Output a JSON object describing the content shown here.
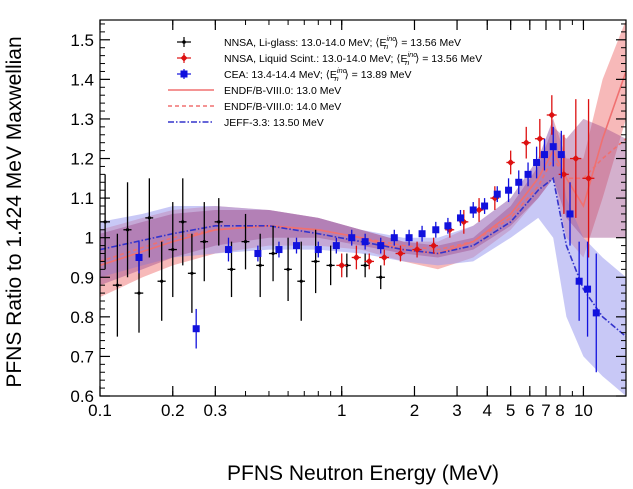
{
  "chart_data": {
    "type": "scatter",
    "title": "",
    "xlabel": "PFNS Neutron Energy (MeV)",
    "ylabel": "PFNS Ratio to 1.424 MeV Maxwellian",
    "xscale": "log",
    "xlim": [
      0.1,
      15
    ],
    "ylim": [
      0.6,
      1.55
    ],
    "grid": false,
    "legend_position": "top-right",
    "x_ticks": [
      0.1,
      0.2,
      0.3,
      1,
      2,
      3,
      4,
      5,
      6,
      7,
      8,
      10
    ],
    "x_tick_labels": [
      "0.1",
      "0.2",
      "0.3",
      "1",
      "2",
      "3",
      "4",
      "5",
      "6",
      "7",
      "8",
      "10"
    ],
    "y_ticks": [
      0.6,
      0.7,
      0.8,
      0.9,
      1.0,
      1.1,
      1.2,
      1.3,
      1.4,
      1.5
    ],
    "y_tick_labels": [
      "0.6",
      "0.7",
      "0.8",
      "0.9",
      "1",
      "1.1",
      "1.2",
      "1.3",
      "1.4",
      "1.5"
    ],
    "legend": [
      {
        "label": "NNSA, Li-glass: 13.0-14.0 MeV; ⟨E",
        "sub": "n",
        "sup": "inc",
        "tail": "⟩ = 13.56 MeV",
        "color": "#000000",
        "style": "marker-small"
      },
      {
        "label": "NNSA, Liquid Scint.: 13.0-14.0 MeV; ⟨E",
        "sub": "n",
        "sup": "inc",
        "tail": "⟩ = 13.56 MeV",
        "color": "#dd1111",
        "style": "marker-diamond"
      },
      {
        "label": "CEA: 13.4-14.4 MeV; ⟨E",
        "sub": "n",
        "sup": "inc",
        "tail": "⟩ = 13.89 MeV",
        "color": "#1111dd",
        "style": "marker-square"
      },
      {
        "label": "ENDF/B-VIII.0: 13.0 MeV",
        "color": "#f07070",
        "style": "solid"
      },
      {
        "label": "ENDF/B-VIII.0: 14.0 MeV",
        "color": "#f07070",
        "style": "dashed"
      },
      {
        "label": "JEFF-3.3: 13.50 MeV",
        "color": "#3333cc",
        "style": "dashdot"
      }
    ],
    "bands": [
      {
        "name": "ENDF/B-VIII.0: 13.0 MeV",
        "color": "#f08080",
        "opacity": 0.55,
        "x": [
          0.1,
          0.15,
          0.2,
          0.3,
          0.5,
          0.8,
          1.2,
          1.8,
          2.5,
          3.5,
          5,
          6.5,
          7.5,
          8.5,
          10,
          12,
          15
        ],
        "upper": [
          1.02,
          1.05,
          1.07,
          1.08,
          1.07,
          1.05,
          1.02,
          0.99,
          0.99,
          1.03,
          1.1,
          1.2,
          1.3,
          1.2,
          1.2,
          1.4,
          1.55
        ],
        "lower": [
          0.85,
          0.9,
          0.93,
          0.96,
          0.98,
          0.98,
          0.97,
          0.94,
          0.92,
          0.95,
          1.02,
          1.1,
          1.15,
          1.0,
          0.95,
          1.1,
          1.3
        ]
      },
      {
        "name": "JEFF-3.3: 13.50 MeV",
        "color": "#9b9bee",
        "opacity": 0.55,
        "x": [
          0.1,
          0.15,
          0.2,
          0.3,
          0.5,
          0.8,
          1.2,
          1.8,
          2.5,
          3.5,
          5,
          6.5,
          7.5,
          8.5,
          10,
          12,
          15
        ],
        "upper": [
          1.04,
          1.06,
          1.08,
          1.08,
          1.07,
          1.05,
          1.02,
          1.0,
          1.0,
          1.03,
          1.1,
          1.2,
          1.3,
          1.1,
          1.0,
          0.95,
          0.9
        ],
        "lower": [
          0.9,
          0.93,
          0.95,
          0.96,
          0.97,
          0.97,
          0.96,
          0.94,
          0.93,
          0.94,
          1.0,
          1.05,
          1.0,
          0.8,
          0.7,
          0.65,
          0.6
        ]
      },
      {
        "name": "ENDF/B-VIII.0: 14.0 MeV",
        "color": "#a05090",
        "opacity": 0.45,
        "x": [
          0.1,
          0.15,
          0.2,
          0.3,
          0.5,
          0.8,
          1.2,
          1.8,
          2.5,
          3.5,
          5,
          6.5,
          7.5,
          8.5,
          10,
          12,
          15
        ],
        "upper": [
          1.01,
          1.04,
          1.06,
          1.07,
          1.07,
          1.05,
          1.02,
          0.99,
          0.98,
          1.0,
          1.08,
          1.18,
          1.28,
          1.25,
          1.3,
          1.28,
          1.25
        ],
        "lower": [
          0.88,
          0.92,
          0.95,
          0.98,
          1.0,
          1.0,
          0.98,
          0.96,
          0.95,
          0.97,
          1.03,
          1.1,
          1.15,
          1.05,
          1.0,
          1.0,
          1.0
        ]
      }
    ],
    "curves": [
      {
        "name": "ENDF/B-VIII.0: 13.0 MeV",
        "color": "#f07070",
        "dash": "",
        "x": [
          0.1,
          0.2,
          0.3,
          0.5,
          0.8,
          1.2,
          1.8,
          2.5,
          3.5,
          5,
          6.5,
          7.5,
          8.5,
          10,
          12,
          15
        ],
        "y": [
          0.93,
          0.99,
          1.02,
          1.03,
          1.02,
          1.0,
          0.97,
          0.96,
          0.99,
          1.06,
          1.15,
          1.22,
          1.15,
          1.08,
          1.25,
          1.42
        ]
      },
      {
        "name": "ENDF/B-VIII.0: 14.0 MeV",
        "color": "#f07070",
        "dash": "4,3",
        "x": [
          0.1,
          0.2,
          0.3,
          0.5,
          0.8,
          1.2,
          1.8,
          2.5,
          3.5,
          5,
          6.5,
          7.5,
          8.5,
          10,
          12,
          15
        ],
        "y": [
          0.94,
          1.0,
          1.02,
          1.03,
          1.02,
          1.0,
          0.98,
          0.97,
          0.99,
          1.05,
          1.13,
          1.2,
          1.15,
          1.15,
          1.2,
          1.25
        ]
      },
      {
        "name": "JEFF-3.3: 13.50 MeV",
        "color": "#3333cc",
        "dash": "6,2,1.5,2",
        "x": [
          0.1,
          0.2,
          0.3,
          0.5,
          0.8,
          1.2,
          1.8,
          2.5,
          3.5,
          5,
          6.5,
          7.5,
          8.5,
          10,
          12,
          15
        ],
        "y": [
          0.97,
          1.01,
          1.03,
          1.03,
          1.01,
          0.99,
          0.97,
          0.96,
          0.98,
          1.04,
          1.12,
          1.15,
          0.98,
          0.87,
          0.8,
          0.75
        ]
      }
    ],
    "series": [
      {
        "name": "NNSA, Li-glass: 13.0-14.0 MeV",
        "color": "#000000",
        "marker": "small",
        "points": [
          {
            "x": 0.105,
            "y": 1.04,
            "yerr": 0.12,
            "xerr": 0.005
          },
          {
            "x": 0.118,
            "y": 0.88,
            "yerr": 0.13,
            "xerr": 0.005
          },
          {
            "x": 0.13,
            "y": 1.02,
            "yerr": 0.12,
            "xerr": 0.005
          },
          {
            "x": 0.145,
            "y": 0.86,
            "yerr": 0.1,
            "xerr": 0.006
          },
          {
            "x": 0.16,
            "y": 1.05,
            "yerr": 0.1,
            "xerr": 0.006
          },
          {
            "x": 0.18,
            "y": 0.89,
            "yerr": 0.1,
            "xerr": 0.007
          },
          {
            "x": 0.2,
            "y": 0.97,
            "yerr": 0.12,
            "xerr": 0.008
          },
          {
            "x": 0.22,
            "y": 1.04,
            "yerr": 0.11,
            "xerr": 0.008
          },
          {
            "x": 0.24,
            "y": 0.91,
            "yerr": 0.1,
            "xerr": 0.009
          },
          {
            "x": 0.27,
            "y": 0.99,
            "yerr": 0.1,
            "xerr": 0.01
          },
          {
            "x": 0.31,
            "y": 1.04,
            "yerr": 0.06,
            "xerr": 0.012
          },
          {
            "x": 0.35,
            "y": 0.92,
            "yerr": 0.07,
            "xerr": 0.013
          },
          {
            "x": 0.4,
            "y": 0.99,
            "yerr": 0.07,
            "xerr": 0.015
          },
          {
            "x": 0.46,
            "y": 0.93,
            "yerr": 0.08,
            "xerr": 0.017
          },
          {
            "x": 0.52,
            "y": 0.96,
            "yerr": 0.07,
            "xerr": 0.02
          },
          {
            "x": 0.6,
            "y": 0.92,
            "yerr": 0.08,
            "xerr": 0.022
          },
          {
            "x": 0.68,
            "y": 0.89,
            "yerr": 0.1,
            "xerr": 0.025
          },
          {
            "x": 0.78,
            "y": 0.94,
            "yerr": 0.08,
            "xerr": 0.03
          },
          {
            "x": 0.9,
            "y": 0.93,
            "yerr": 0.05,
            "xerr": 0.035
          },
          {
            "x": 1.05,
            "y": 0.93,
            "yerr": 0.03,
            "xerr": 0.04
          },
          {
            "x": 1.25,
            "y": 0.93,
            "yerr": 0.03,
            "xerr": 0.05
          },
          {
            "x": 1.45,
            "y": 0.9,
            "yerr": 0.03,
            "xerr": 0.06
          }
        ]
      },
      {
        "name": "NNSA, Liquid Scint.: 13.0-14.0 MeV",
        "color": "#dd1111",
        "marker": "diamond",
        "points": [
          {
            "x": 1.0,
            "y": 0.93,
            "yerr": 0.03,
            "xerr": 0.05
          },
          {
            "x": 1.15,
            "y": 0.95,
            "yerr": 0.03,
            "xerr": 0.05
          },
          {
            "x": 1.3,
            "y": 0.94,
            "yerr": 0.02,
            "xerr": 0.06
          },
          {
            "x": 1.5,
            "y": 0.95,
            "yerr": 0.02,
            "xerr": 0.07
          },
          {
            "x": 1.75,
            "y": 0.96,
            "yerr": 0.02,
            "xerr": 0.08
          },
          {
            "x": 2.05,
            "y": 0.97,
            "yerr": 0.02,
            "xerr": 0.09
          },
          {
            "x": 2.4,
            "y": 0.98,
            "yerr": 0.02,
            "xerr": 0.1
          },
          {
            "x": 2.8,
            "y": 1.02,
            "yerr": 0.02,
            "xerr": 0.12
          },
          {
            "x": 3.2,
            "y": 1.04,
            "yerr": 0.03,
            "xerr": 0.14
          },
          {
            "x": 3.7,
            "y": 1.07,
            "yerr": 0.03,
            "xerr": 0.16
          },
          {
            "x": 4.3,
            "y": 1.1,
            "yerr": 0.03,
            "xerr": 0.18
          },
          {
            "x": 5.0,
            "y": 1.19,
            "yerr": 0.03,
            "xerr": 0.2
          },
          {
            "x": 5.8,
            "y": 1.24,
            "yerr": 0.04,
            "xerr": 0.25
          },
          {
            "x": 6.6,
            "y": 1.25,
            "yerr": 0.05,
            "xerr": 0.3
          },
          {
            "x": 7.4,
            "y": 1.31,
            "yerr": 0.05,
            "xerr": 0.35
          },
          {
            "x": 8.3,
            "y": 1.16,
            "yerr": 0.1,
            "xerr": 0.4
          },
          {
            "x": 9.3,
            "y": 1.2,
            "yerr": 0.15,
            "xerr": 0.5
          },
          {
            "x": 10.5,
            "y": 1.15,
            "yerr": 0.2,
            "xerr": 0.6
          }
        ]
      },
      {
        "name": "CEA: 13.4-14.4 MeV",
        "color": "#1111dd",
        "marker": "square",
        "points": [
          {
            "x": 0.145,
            "y": 0.95,
            "yerr": 0.04
          },
          {
            "x": 0.25,
            "y": 0.77,
            "yerr": 0.05
          },
          {
            "x": 0.34,
            "y": 0.97,
            "yerr": 0.03
          },
          {
            "x": 0.45,
            "y": 0.96,
            "yerr": 0.02
          },
          {
            "x": 0.55,
            "y": 0.97,
            "yerr": 0.02
          },
          {
            "x": 0.65,
            "y": 0.98,
            "yerr": 0.02
          },
          {
            "x": 0.8,
            "y": 0.97,
            "yerr": 0.02
          },
          {
            "x": 0.95,
            "y": 0.98,
            "yerr": 0.02
          },
          {
            "x": 1.1,
            "y": 1.0,
            "yerr": 0.02
          },
          {
            "x": 1.25,
            "y": 0.99,
            "yerr": 0.02
          },
          {
            "x": 1.45,
            "y": 0.98,
            "yerr": 0.02
          },
          {
            "x": 1.65,
            "y": 1.0,
            "yerr": 0.02
          },
          {
            "x": 1.9,
            "y": 1.0,
            "yerr": 0.02
          },
          {
            "x": 2.15,
            "y": 1.01,
            "yerr": 0.02
          },
          {
            "x": 2.45,
            "y": 1.02,
            "yerr": 0.02
          },
          {
            "x": 2.75,
            "y": 1.03,
            "yerr": 0.02
          },
          {
            "x": 3.1,
            "y": 1.05,
            "yerr": 0.02
          },
          {
            "x": 3.5,
            "y": 1.07,
            "yerr": 0.02
          },
          {
            "x": 3.9,
            "y": 1.08,
            "yerr": 0.02
          },
          {
            "x": 4.4,
            "y": 1.11,
            "yerr": 0.02
          },
          {
            "x": 4.9,
            "y": 1.12,
            "yerr": 0.03
          },
          {
            "x": 5.4,
            "y": 1.14,
            "yerr": 0.03
          },
          {
            "x": 5.9,
            "y": 1.16,
            "yerr": 0.03
          },
          {
            "x": 6.4,
            "y": 1.19,
            "yerr": 0.04
          },
          {
            "x": 6.9,
            "y": 1.21,
            "yerr": 0.04
          },
          {
            "x": 7.5,
            "y": 1.23,
            "yerr": 0.05
          },
          {
            "x": 8.1,
            "y": 1.21,
            "yerr": 0.06
          },
          {
            "x": 8.8,
            "y": 1.06,
            "yerr": 0.08
          },
          {
            "x": 9.6,
            "y": 0.89,
            "yerr": 0.1
          },
          {
            "x": 10.4,
            "y": 0.87,
            "yerr": 0.12
          },
          {
            "x": 11.3,
            "y": 0.81,
            "yerr": 0.15
          }
        ]
      }
    ]
  }
}
